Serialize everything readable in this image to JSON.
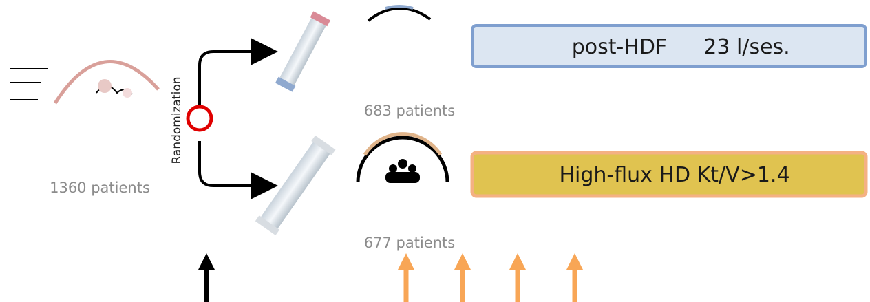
{
  "left": {
    "patients": "1360 patients"
  },
  "randomization": "Randomization",
  "arms": [
    {
      "patients": "683 patients",
      "treatment": "post-HDF",
      "volume": "23 l/ses."
    },
    {
      "patients": "677 patients",
      "treatment": "High-flux HD Kt/V>1.4"
    }
  ]
}
